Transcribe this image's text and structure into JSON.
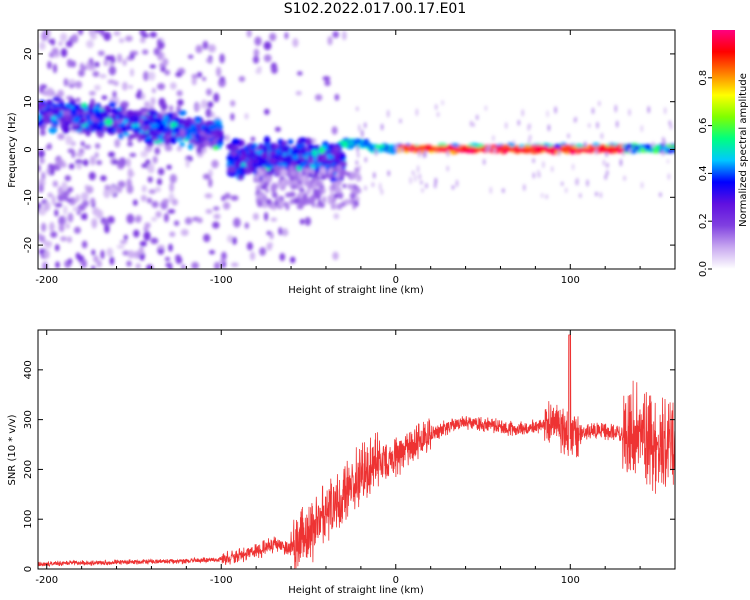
{
  "figure_title": "S102.2022.017.00.17.E01",
  "colors": {
    "snr_line": "#ee3333",
    "axes": "#000000"
  },
  "colorscale": {
    "name": "rainbow",
    "label": "Normalized spectral amplitude",
    "range": [
      0.0,
      1.0
    ],
    "ticks": [
      0.0,
      0.2,
      0.4,
      0.6,
      0.8
    ],
    "tick_labels": [
      "0.0",
      "0.2",
      "0.4",
      "0.6",
      "0.8"
    ],
    "stops": [
      "#ffffff",
      "#c8a8f0",
      "#8040e0",
      "#6010e0",
      "#0000ff",
      "#00c8ff",
      "#00ff80",
      "#80ff00",
      "#ffff00",
      "#ff8000",
      "#ff0000",
      "#ff0080"
    ]
  },
  "chart_data": [
    {
      "type": "heatmap",
      "title": "",
      "xlabel": "Height of straight line (km)",
      "ylabel": "Frequency (Hz)",
      "xlim": [
        -205,
        160
      ],
      "ylim": [
        -25,
        25
      ],
      "xticks": [
        -200,
        -100,
        0,
        100
      ],
      "xtick_labels": [
        "-200",
        "-100",
        "0",
        "100"
      ],
      "yticks": [
        -20,
        -10,
        0,
        10,
        20
      ],
      "ytick_labels": [
        "-20",
        "-10",
        "0",
        "10",
        "20"
      ],
      "features": [
        {
          "x_range": [
            -205,
            -100
          ],
          "freq_center": [
            8,
            2
          ],
          "description": "diffuse band, amplitude 0.1-0.5"
        },
        {
          "x_range": [
            -95,
            -30
          ],
          "freq_center": [
            -2,
            -3
          ],
          "description": "scattered band, amplitude 0.2-0.5"
        },
        {
          "x_range": [
            -30,
            160
          ],
          "freq_center": [
            0,
            0
          ],
          "description": "narrow band at 0 Hz, amplitude up to 1.0"
        }
      ]
    },
    {
      "type": "line",
      "title": "",
      "xlabel": "Height of straight line (km)",
      "ylabel": "SNR (10 * v/v)",
      "xlim": [
        -205,
        160
      ],
      "ylim": [
        0,
        480
      ],
      "xticks": [
        -200,
        -100,
        0,
        100
      ],
      "xtick_labels": [
        "-200",
        "-100",
        "0",
        "100"
      ],
      "yticks": [
        0,
        100,
        200,
        300,
        400
      ],
      "ytick_labels": [
        "0",
        "100",
        "200",
        "300",
        "400"
      ],
      "series": [
        {
          "x": [
            -205,
            -180,
            -150,
            -120,
            -100,
            -90,
            -80,
            -70,
            -60,
            -50,
            -40,
            -30,
            -20,
            -10,
            0,
            10,
            20,
            30,
            40,
            50,
            60,
            70,
            80,
            90,
            100,
            110,
            120,
            130,
            140,
            150,
            160
          ],
          "y": [
            10,
            12,
            14,
            16,
            20,
            25,
            35,
            50,
            40,
            70,
            110,
            150,
            190,
            215,
            220,
            250,
            270,
            285,
            295,
            290,
            285,
            280,
            285,
            300,
            265,
            275,
            275,
            270,
            275,
            250,
            250
          ]
        }
      ]
    }
  ]
}
